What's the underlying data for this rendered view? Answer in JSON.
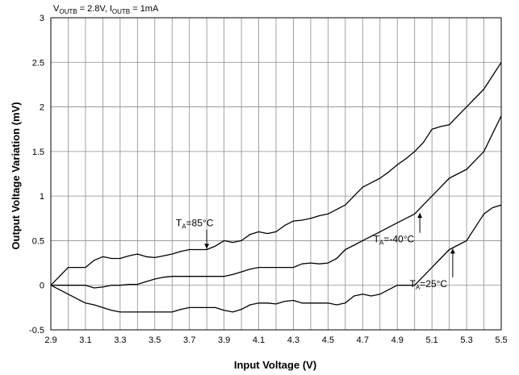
{
  "chart_data": {
    "type": "line",
    "title": "",
    "conditions": {
      "v_prefix": "V",
      "v_sub": "OUTB",
      "v_value": " = 2.8V, ",
      "i_prefix": "I",
      "i_sub": "OUTB",
      "i_value": " = 1mA"
    },
    "xlabel": "Input Voltage (V)",
    "ylabel": "Output Voltage Variation (mV)",
    "xlim": [
      2.9,
      5.5
    ],
    "ylim": [
      -0.5,
      3
    ],
    "x_ticks": [
      "2.9",
      "3.1",
      "3.3",
      "3.5",
      "3.7",
      "3.9",
      "4.1",
      "4.3",
      "4.5",
      "4.7",
      "4.9",
      "5.1",
      "5.3",
      "5.5"
    ],
    "y_ticks": [
      "-0.5",
      "0",
      "0.5",
      "1",
      "1.5",
      "2",
      "2.5",
      "3"
    ],
    "x_minor_step": 0.1,
    "y_step": 0.5,
    "grid": true,
    "series": [
      {
        "label_main": "T",
        "label_sub": "A",
        "label_rest": "=85°C",
        "points": [
          [
            2.9,
            0
          ],
          [
            2.95,
            0.1
          ],
          [
            3.0,
            0.2
          ],
          [
            3.05,
            0.2
          ],
          [
            3.1,
            0.2
          ],
          [
            3.15,
            0.28
          ],
          [
            3.2,
            0.32
          ],
          [
            3.25,
            0.3
          ],
          [
            3.3,
            0.3
          ],
          [
            3.35,
            0.33
          ],
          [
            3.4,
            0.35
          ],
          [
            3.45,
            0.32
          ],
          [
            3.5,
            0.31
          ],
          [
            3.55,
            0.33
          ],
          [
            3.6,
            0.35
          ],
          [
            3.65,
            0.38
          ],
          [
            3.7,
            0.4
          ],
          [
            3.75,
            0.4
          ],
          [
            3.8,
            0.4
          ],
          [
            3.85,
            0.44
          ],
          [
            3.9,
            0.5
          ],
          [
            3.95,
            0.48
          ],
          [
            4.0,
            0.5
          ],
          [
            4.05,
            0.57
          ],
          [
            4.1,
            0.6
          ],
          [
            4.15,
            0.58
          ],
          [
            4.2,
            0.6
          ],
          [
            4.25,
            0.67
          ],
          [
            4.3,
            0.72
          ],
          [
            4.35,
            0.73
          ],
          [
            4.4,
            0.75
          ],
          [
            4.45,
            0.78
          ],
          [
            4.5,
            0.8
          ],
          [
            4.55,
            0.85
          ],
          [
            4.6,
            0.9
          ],
          [
            4.65,
            1.0
          ],
          [
            4.7,
            1.1
          ],
          [
            4.75,
            1.15
          ],
          [
            4.8,
            1.2
          ],
          [
            4.85,
            1.27
          ],
          [
            4.9,
            1.35
          ],
          [
            4.95,
            1.42
          ],
          [
            5.0,
            1.5
          ],
          [
            5.05,
            1.6
          ],
          [
            5.1,
            1.75
          ],
          [
            5.15,
            1.78
          ],
          [
            5.2,
            1.8
          ],
          [
            5.25,
            1.9
          ],
          [
            5.3,
            2.0
          ],
          [
            5.35,
            2.1
          ],
          [
            5.4,
            2.2
          ],
          [
            5.45,
            2.35
          ],
          [
            5.5,
            2.5
          ]
        ]
      },
      {
        "label_main": "T",
        "label_sub": "A",
        "label_rest": "=-40°C",
        "points": [
          [
            2.9,
            0
          ],
          [
            3.0,
            0
          ],
          [
            3.1,
            0
          ],
          [
            3.15,
            -0.03
          ],
          [
            3.2,
            -0.02
          ],
          [
            3.25,
            0
          ],
          [
            3.3,
            0
          ],
          [
            3.35,
            0.01
          ],
          [
            3.4,
            0.01
          ],
          [
            3.45,
            0.04
          ],
          [
            3.5,
            0.07
          ],
          [
            3.55,
            0.09
          ],
          [
            3.6,
            0.1
          ],
          [
            3.7,
            0.1
          ],
          [
            3.8,
            0.1
          ],
          [
            3.9,
            0.1
          ],
          [
            3.95,
            0.12
          ],
          [
            4.0,
            0.15
          ],
          [
            4.05,
            0.18
          ],
          [
            4.1,
            0.2
          ],
          [
            4.2,
            0.2
          ],
          [
            4.3,
            0.2
          ],
          [
            4.35,
            0.24
          ],
          [
            4.4,
            0.25
          ],
          [
            4.45,
            0.24
          ],
          [
            4.5,
            0.25
          ],
          [
            4.55,
            0.3
          ],
          [
            4.6,
            0.4
          ],
          [
            4.65,
            0.45
          ],
          [
            4.7,
            0.5
          ],
          [
            4.75,
            0.55
          ],
          [
            4.8,
            0.6
          ],
          [
            4.85,
            0.65
          ],
          [
            4.9,
            0.7
          ],
          [
            4.95,
            0.75
          ],
          [
            5.0,
            0.8
          ],
          [
            5.05,
            0.9
          ],
          [
            5.1,
            1.0
          ],
          [
            5.15,
            1.1
          ],
          [
            5.2,
            1.2
          ],
          [
            5.25,
            1.25
          ],
          [
            5.3,
            1.3
          ],
          [
            5.35,
            1.4
          ],
          [
            5.4,
            1.5
          ],
          [
            5.45,
            1.7
          ],
          [
            5.5,
            1.9
          ]
        ]
      },
      {
        "label_main": "T",
        "label_sub": "A",
        "label_rest": "=25°C",
        "points": [
          [
            2.9,
            0
          ],
          [
            2.95,
            -0.05
          ],
          [
            3.0,
            -0.1
          ],
          [
            3.05,
            -0.15
          ],
          [
            3.1,
            -0.2
          ],
          [
            3.15,
            -0.22
          ],
          [
            3.2,
            -0.25
          ],
          [
            3.25,
            -0.28
          ],
          [
            3.3,
            -0.3
          ],
          [
            3.4,
            -0.3
          ],
          [
            3.5,
            -0.3
          ],
          [
            3.6,
            -0.3
          ],
          [
            3.65,
            -0.27
          ],
          [
            3.7,
            -0.25
          ],
          [
            3.8,
            -0.25
          ],
          [
            3.85,
            -0.25
          ],
          [
            3.9,
            -0.28
          ],
          [
            3.95,
            -0.3
          ],
          [
            4.0,
            -0.27
          ],
          [
            4.05,
            -0.22
          ],
          [
            4.1,
            -0.2
          ],
          [
            4.15,
            -0.2
          ],
          [
            4.2,
            -0.21
          ],
          [
            4.25,
            -0.18
          ],
          [
            4.3,
            -0.17
          ],
          [
            4.35,
            -0.2
          ],
          [
            4.4,
            -0.2
          ],
          [
            4.5,
            -0.2
          ],
          [
            4.55,
            -0.22
          ],
          [
            4.6,
            -0.2
          ],
          [
            4.65,
            -0.12
          ],
          [
            4.7,
            -0.1
          ],
          [
            4.75,
            -0.12
          ],
          [
            4.8,
            -0.1
          ],
          [
            4.85,
            -0.05
          ],
          [
            4.9,
            0
          ],
          [
            4.95,
            0
          ],
          [
            5.0,
            0
          ],
          [
            5.05,
            0.1
          ],
          [
            5.1,
            0.2
          ],
          [
            5.15,
            0.3
          ],
          [
            5.2,
            0.4
          ],
          [
            5.25,
            0.45
          ],
          [
            5.3,
            0.5
          ],
          [
            5.35,
            0.65
          ],
          [
            5.4,
            0.8
          ],
          [
            5.45,
            0.87
          ],
          [
            5.5,
            0.9
          ]
        ]
      }
    ],
    "annotations": [
      {
        "series": 0,
        "label_x": 3.73,
        "label_y": 0.66,
        "arrow_to": [
          3.8,
          0.41
        ]
      },
      {
        "series": 1,
        "label_x": 4.88,
        "label_y": 0.48,
        "arrow_to": [
          5.03,
          0.81
        ]
      },
      {
        "series": 2,
        "label_x": 5.08,
        "label_y": -0.02,
        "arrow_to": [
          5.22,
          0.41
        ]
      }
    ]
  }
}
